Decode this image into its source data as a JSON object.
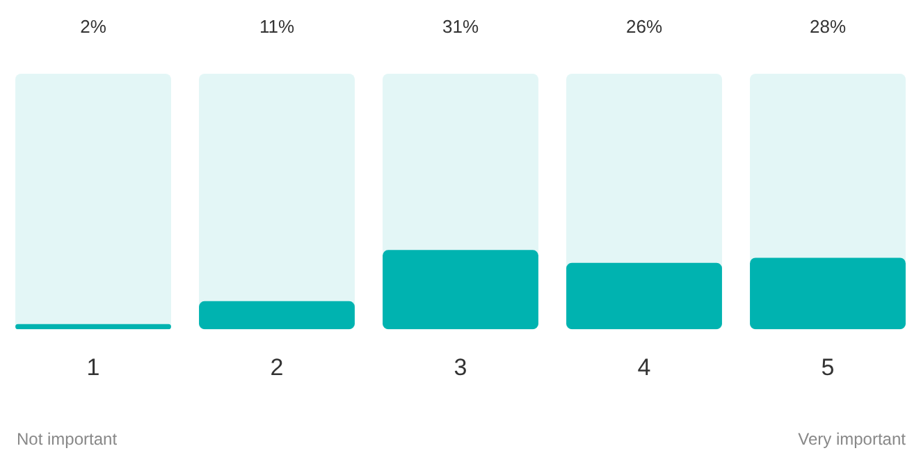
{
  "chart_data": {
    "type": "bar",
    "categories": [
      "1",
      "2",
      "3",
      "4",
      "5"
    ],
    "values": [
      2,
      11,
      31,
      26,
      28
    ],
    "color": "#00b3b0",
    "value_labels": [
      "2%",
      "11%",
      "31%",
      "26%",
      "28%"
    ],
    "ylim": [
      0,
      100
    ],
    "tick_labels": "x",
    "grid": false,
    "legend": false,
    "annotations": [
      "Not important",
      "Very important"
    ]
  }
}
